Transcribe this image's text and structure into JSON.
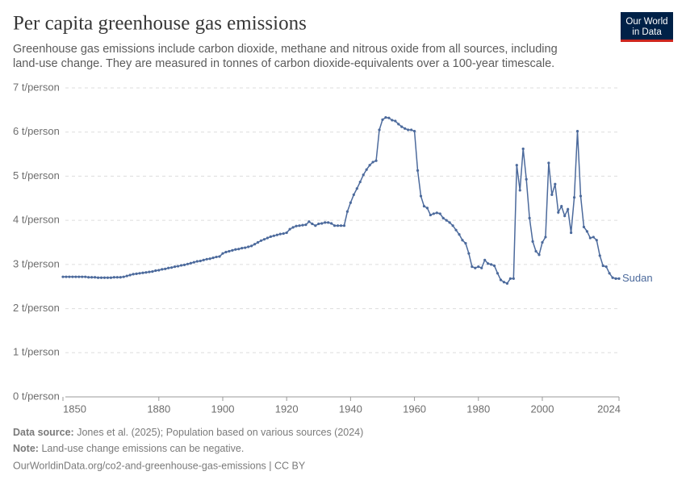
{
  "chart_data": {
    "type": "line",
    "title": "Per capita greenhouse gas emissions",
    "subtitle": [
      "Greenhouse gas emissions include carbon dioxide, methane and nitrous oxide from all sources, including",
      "land-use change. They are measured in tonnes of carbon dioxide-equivalents over a 100-year timescale."
    ],
    "logo": [
      "Our World",
      "in Data"
    ],
    "source_label": "Data source:",
    "source": "Jones et al. (2025); Population based on various sources (2024)",
    "note_label": "Note:",
    "note": "Land-use change emissions can be negative.",
    "url": "OurWorldinData.org/co2-and-greenhouse-gas-emissions | CC BY",
    "x": [
      1850,
      1851,
      1852,
      1853,
      1854,
      1855,
      1856,
      1857,
      1858,
      1859,
      1860,
      1861,
      1862,
      1863,
      1864,
      1865,
      1866,
      1867,
      1868,
      1869,
      1870,
      1871,
      1872,
      1873,
      1874,
      1875,
      1876,
      1877,
      1878,
      1879,
      1880,
      1881,
      1882,
      1883,
      1884,
      1885,
      1886,
      1887,
      1888,
      1889,
      1890,
      1891,
      1892,
      1893,
      1894,
      1895,
      1896,
      1897,
      1898,
      1899,
      1900,
      1901,
      1902,
      1903,
      1904,
      1905,
      1906,
      1907,
      1908,
      1909,
      1910,
      1911,
      1912,
      1913,
      1914,
      1915,
      1916,
      1917,
      1918,
      1919,
      1920,
      1921,
      1922,
      1923,
      1924,
      1925,
      1926,
      1927,
      1928,
      1929,
      1930,
      1931,
      1932,
      1933,
      1934,
      1935,
      1936,
      1937,
      1938,
      1939,
      1940,
      1941,
      1942,
      1943,
      1944,
      1945,
      1946,
      1947,
      1948,
      1949,
      1950,
      1951,
      1952,
      1953,
      1954,
      1955,
      1956,
      1957,
      1958,
      1959,
      1960,
      1961,
      1962,
      1963,
      1964,
      1965,
      1966,
      1967,
      1968,
      1969,
      1970,
      1971,
      1972,
      1973,
      1974,
      1975,
      1976,
      1977,
      1978,
      1979,
      1980,
      1981,
      1982,
      1983,
      1984,
      1985,
      1986,
      1987,
      1988,
      1989,
      1990,
      1991,
      1992,
      1993,
      1994,
      1995,
      1996,
      1997,
      1998,
      1999,
      2000,
      2001,
      2002,
      2003,
      2004,
      2005,
      2006,
      2007,
      2008,
      2009,
      2010,
      2011,
      2012,
      2013,
      2014,
      2015,
      2016,
      2017,
      2018,
      2019,
      2020,
      2021,
      2022,
      2023,
      2024
    ],
    "series": [
      {
        "name": "Sudan",
        "color": "#4c6a9c",
        "values": [
          2.72,
          2.72,
          2.72,
          2.72,
          2.72,
          2.72,
          2.72,
          2.72,
          2.71,
          2.71,
          2.71,
          2.7,
          2.7,
          2.7,
          2.7,
          2.7,
          2.71,
          2.71,
          2.71,
          2.72,
          2.74,
          2.76,
          2.78,
          2.79,
          2.8,
          2.81,
          2.82,
          2.83,
          2.84,
          2.86,
          2.87,
          2.89,
          2.9,
          2.92,
          2.93,
          2.95,
          2.96,
          2.98,
          2.99,
          3.01,
          3.03,
          3.05,
          3.07,
          3.08,
          3.1,
          3.12,
          3.13,
          3.15,
          3.17,
          3.18,
          3.25,
          3.28,
          3.3,
          3.32,
          3.34,
          3.35,
          3.37,
          3.38,
          3.4,
          3.42,
          3.46,
          3.5,
          3.54,
          3.57,
          3.6,
          3.63,
          3.65,
          3.67,
          3.69,
          3.7,
          3.72,
          3.8,
          3.84,
          3.87,
          3.88,
          3.89,
          3.9,
          3.97,
          3.92,
          3.88,
          3.92,
          3.93,
          3.95,
          3.95,
          3.93,
          3.88,
          3.88,
          3.88,
          3.88,
          4.2,
          4.4,
          4.58,
          4.72,
          4.87,
          5.03,
          5.15,
          5.25,
          5.32,
          5.35,
          6.05,
          6.28,
          6.33,
          6.32,
          6.27,
          6.25,
          6.18,
          6.12,
          6.08,
          6.05,
          6.05,
          6.02,
          5.13,
          4.55,
          4.32,
          4.28,
          4.12,
          4.15,
          4.17,
          4.15,
          4.05,
          4.0,
          3.95,
          3.88,
          3.78,
          3.68,
          3.55,
          3.48,
          3.25,
          2.95,
          2.92,
          2.95,
          2.92,
          3.1,
          3.02,
          3.0,
          2.97,
          2.8,
          2.65,
          2.6,
          2.57,
          2.68,
          2.68,
          5.25,
          4.68,
          5.62,
          4.93,
          4.05,
          3.52,
          3.3,
          3.22,
          3.5,
          3.62,
          5.3,
          4.58,
          4.82,
          4.18,
          4.32,
          4.1,
          4.25,
          3.72,
          4.52,
          6.02,
          4.55,
          3.85,
          3.75,
          3.6,
          3.62,
          3.55,
          3.2,
          2.97,
          2.95,
          2.8,
          2.7,
          2.68,
          2.68
        ]
      }
    ],
    "xlim": [
      1850,
      2024
    ],
    "xticks": [
      1850,
      1880,
      1900,
      1920,
      1940,
      1960,
      1980,
      2000,
      2024
    ],
    "ylim": [
      0,
      7
    ],
    "yticks": [
      {
        "value": 0,
        "label": "0 t/person"
      },
      {
        "value": 1,
        "label": "1 t/person"
      },
      {
        "value": 2,
        "label": "2 t/person"
      },
      {
        "value": 3,
        "label": "3 t/person"
      },
      {
        "value": 4,
        "label": "4 t/person"
      },
      {
        "value": 5,
        "label": "5 t/person"
      },
      {
        "value": 6,
        "label": "6 t/person"
      },
      {
        "value": 7,
        "label": "7 t/person"
      }
    ],
    "grid": true
  }
}
